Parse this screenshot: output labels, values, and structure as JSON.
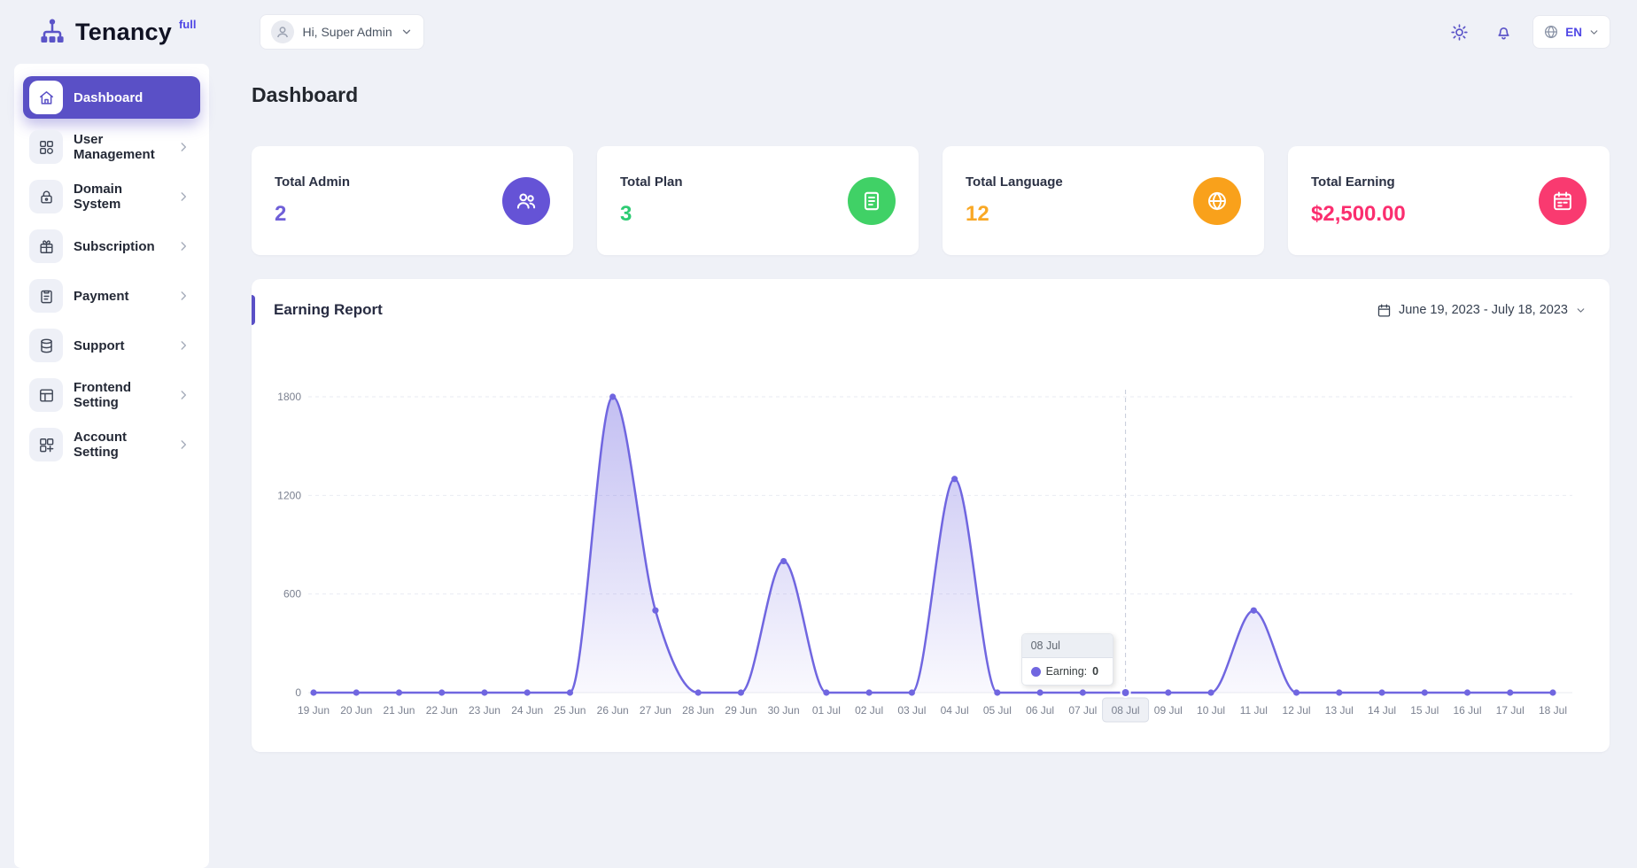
{
  "app": {
    "brand": "Tenancy",
    "brand_suffix": "full"
  },
  "header": {
    "greeting": "Hi, Super Admin",
    "language": "EN"
  },
  "page": {
    "title": "Dashboard"
  },
  "sidebar": {
    "items": [
      {
        "label": "Dashboard",
        "icon": "home-icon",
        "active": true,
        "has_children": false
      },
      {
        "label": "User Management",
        "icon": "grid-icon",
        "active": false,
        "has_children": true
      },
      {
        "label": "Domain System",
        "icon": "lock-icon",
        "active": false,
        "has_children": true
      },
      {
        "label": "Subscription",
        "icon": "gift-icon",
        "active": false,
        "has_children": true
      },
      {
        "label": "Payment",
        "icon": "clipboard-icon",
        "active": false,
        "has_children": true
      },
      {
        "label": "Support",
        "icon": "database-icon",
        "active": false,
        "has_children": true
      },
      {
        "label": "Frontend Setting",
        "icon": "layout-icon",
        "active": false,
        "has_children": true
      },
      {
        "label": "Account Setting",
        "icon": "apps-icon",
        "active": false,
        "has_children": true
      }
    ]
  },
  "stats": [
    {
      "label": "Total Admin",
      "value": "2",
      "value_color": "#6f5fd8",
      "icon": "users-icon",
      "icon_bg": "#6553d6"
    },
    {
      "label": "Total Plan",
      "value": "3",
      "value_color": "#2dcb73",
      "icon": "plan-icon",
      "icon_bg": "#40d166"
    },
    {
      "label": "Total Language",
      "value": "12",
      "value_color": "#f9a825",
      "icon": "globe-icon",
      "icon_bg": "#f9a11b"
    },
    {
      "label": "Total Earning",
      "value": "$2,500.00",
      "value_color": "#fb2e6f",
      "icon": "calendar-icon",
      "icon_bg": "#f93a70"
    }
  ],
  "earning_report": {
    "title": "Earning Report",
    "date_range": "June 19, 2023 - July 18, 2023",
    "tooltip": {
      "date": "08 Jul",
      "series": "Earning:",
      "value": "0"
    }
  },
  "chart_data": {
    "type": "area",
    "title": "Earning Report",
    "x": [
      "19 Jun",
      "20 Jun",
      "21 Jun",
      "22 Jun",
      "23 Jun",
      "24 Jun",
      "25 Jun",
      "26 Jun",
      "27 Jun",
      "28 Jun",
      "29 Jun",
      "30 Jun",
      "01 Jul",
      "02 Jul",
      "03 Jul",
      "04 Jul",
      "05 Jul",
      "06 Jul",
      "07 Jul",
      "08 Jul",
      "09 Jul",
      "10 Jul",
      "11 Jul",
      "12 Jul",
      "13 Jul",
      "14 Jul",
      "15 Jul",
      "16 Jul",
      "17 Jul",
      "18 Jul"
    ],
    "series": [
      {
        "name": "Earning",
        "values": [
          0,
          0,
          0,
          0,
          0,
          0,
          0,
          1800,
          500,
          0,
          0,
          800,
          0,
          0,
          0,
          1300,
          0,
          0,
          0,
          0,
          0,
          0,
          500,
          0,
          0,
          0,
          0,
          0,
          0,
          0
        ]
      }
    ],
    "ylim": [
      0,
      1800
    ],
    "yticks": [
      0,
      600,
      1200,
      1800
    ],
    "highlight_index": 19,
    "line_color": "#7066e0",
    "grid": true,
    "legend": "none"
  }
}
